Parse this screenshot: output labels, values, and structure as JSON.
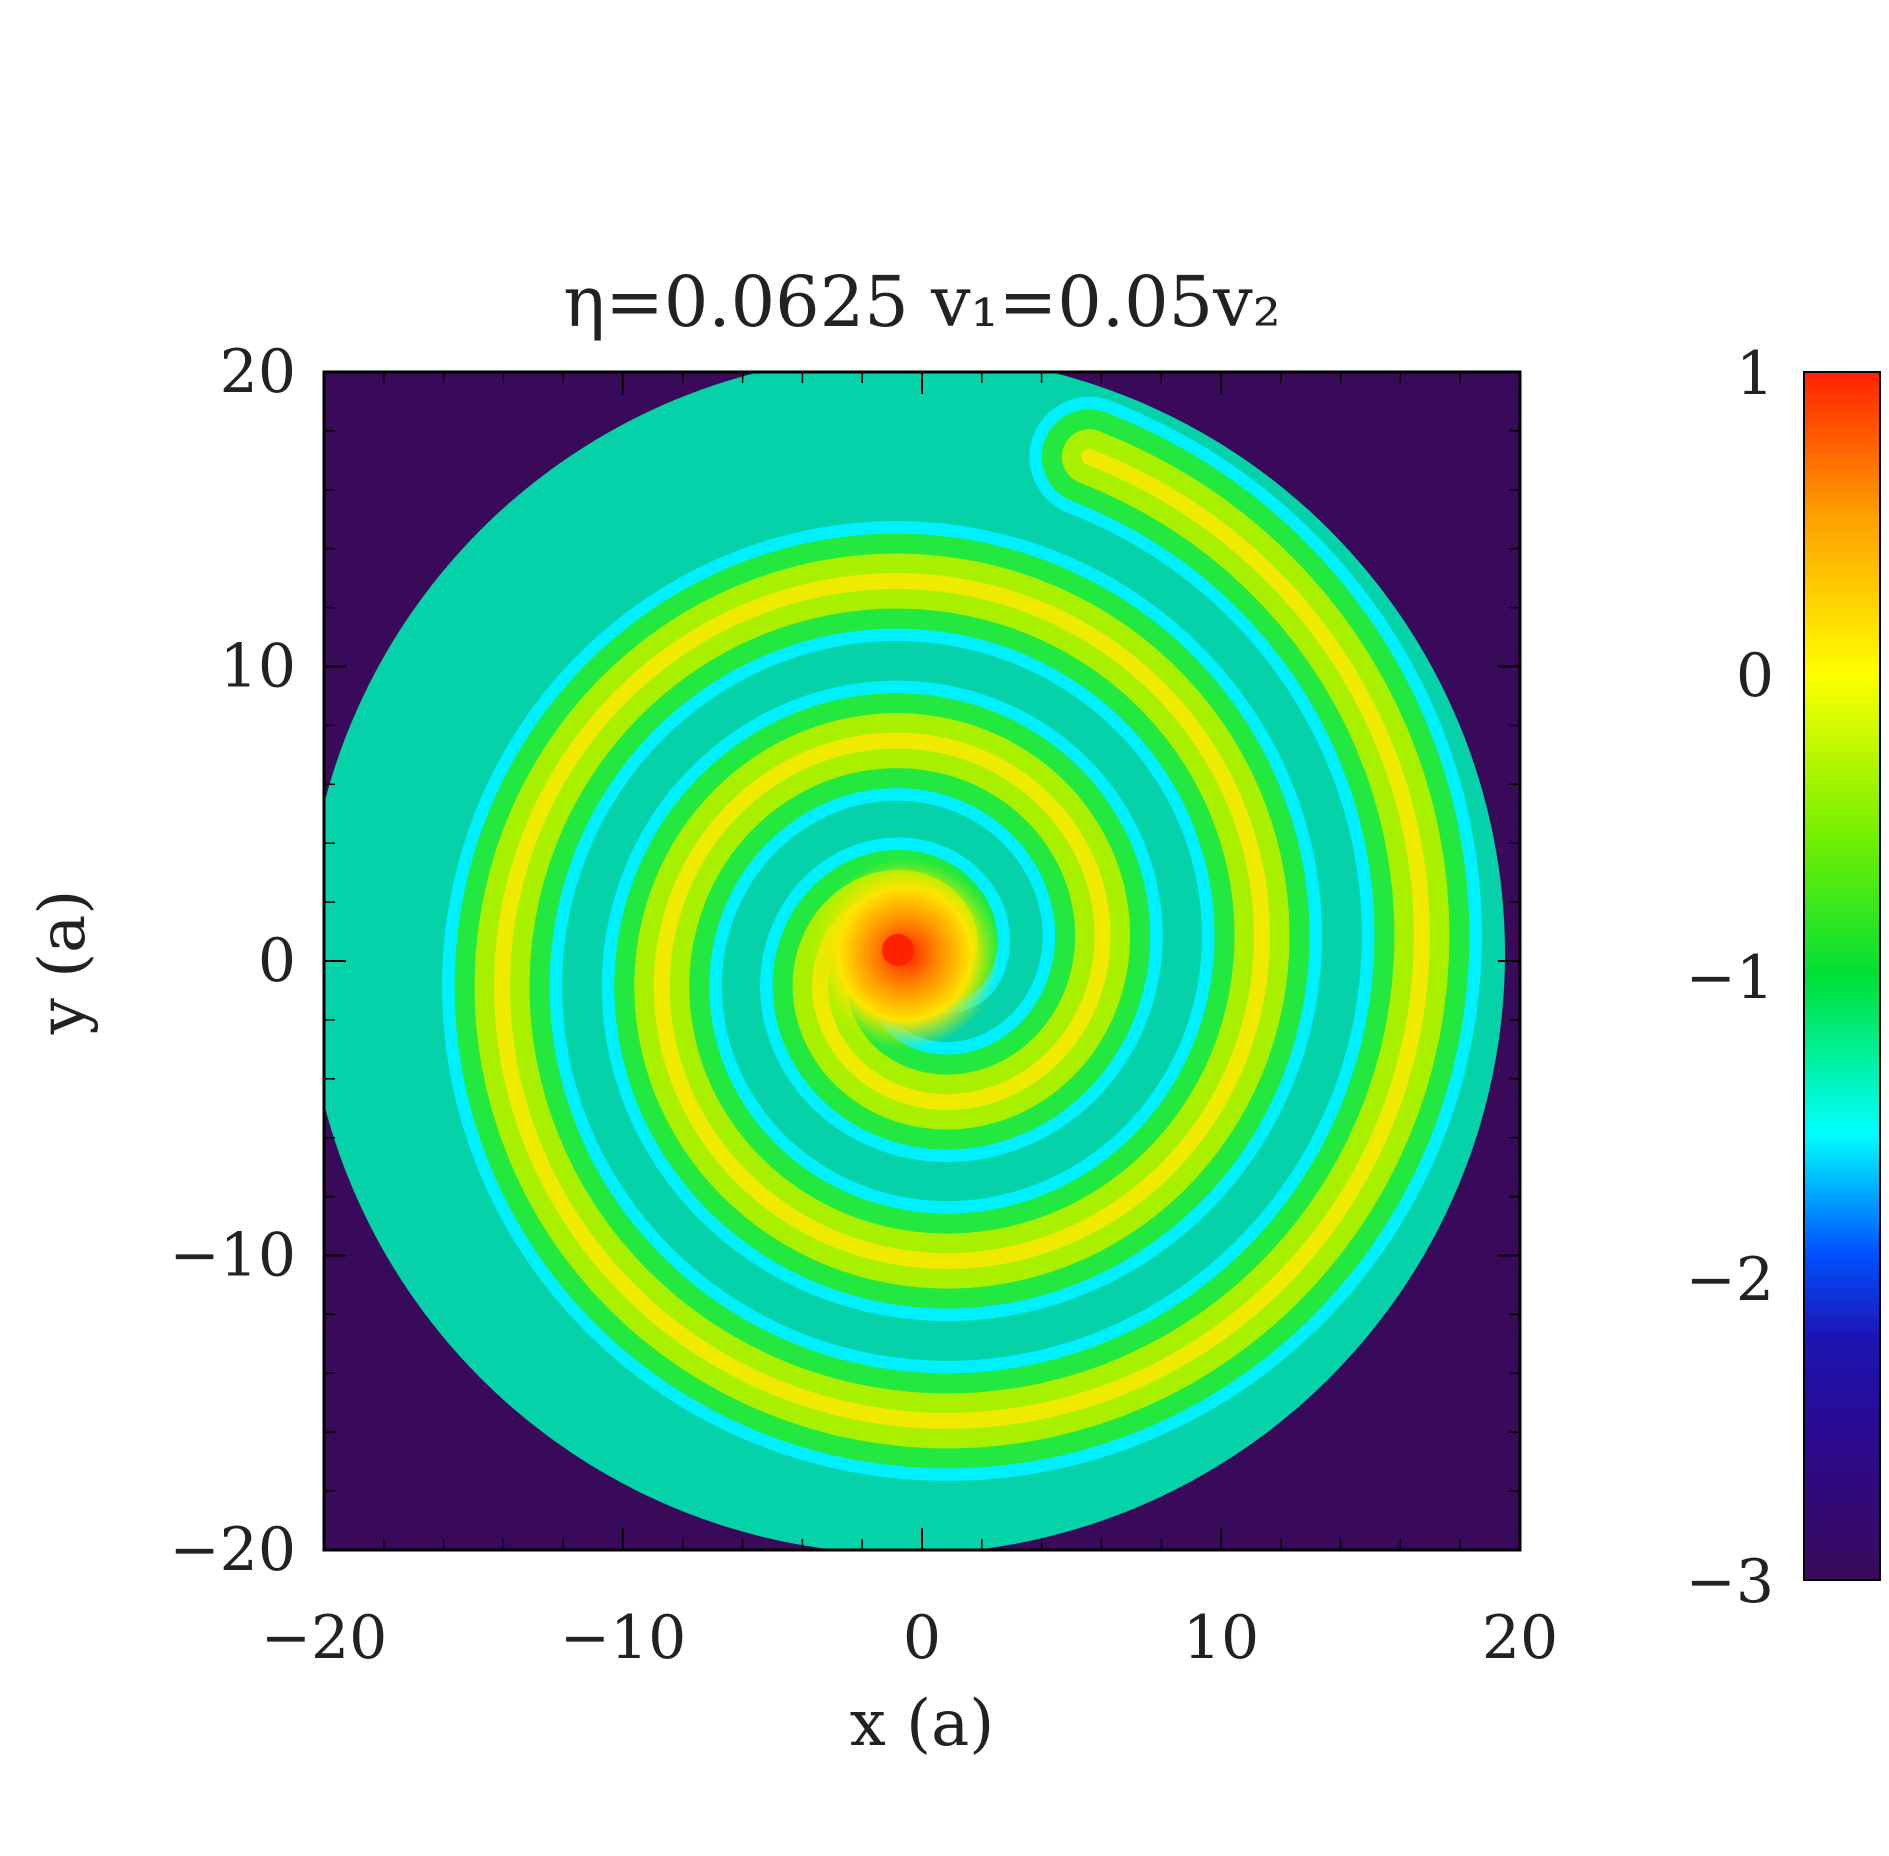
{
  "chart_data": {
    "type": "heatmap",
    "title": "η=0.0625  v₁=0.05v₂",
    "xlabel": "x (a)",
    "ylabel": "y (a)",
    "xlim": [
      -20,
      20
    ],
    "ylim": [
      -20,
      20
    ],
    "x_ticks": [
      -20,
      -10,
      0,
      10,
      20
    ],
    "y_ticks": [
      -20,
      -10,
      0,
      10,
      20
    ],
    "x_tick_labels": [
      "−20",
      "−10",
      "0",
      "10",
      "20"
    ],
    "y_tick_labels": [
      "−20",
      "−10",
      "0",
      "10",
      "20"
    ],
    "colorbar": {
      "range": [
        -3,
        1
      ],
      "ticks": [
        1,
        0,
        -1,
        -2,
        -3
      ],
      "tick_labels": [
        "1",
        "0",
        "−1",
        "−2",
        "−3"
      ],
      "colormap": "rainbow",
      "colors": [
        "#3a0a5a",
        "#1e14b4",
        "#0050ff",
        "#00ffff",
        "#00e036",
        "#78f000",
        "#ffff00",
        "#ffa000",
        "#ff2200"
      ]
    },
    "features": {
      "pattern": "spiral",
      "center": [
        0,
        0
      ],
      "peak_value": 1,
      "background_value": -3,
      "arm_value_range": [
        -1,
        0
      ]
    },
    "grid": false
  }
}
